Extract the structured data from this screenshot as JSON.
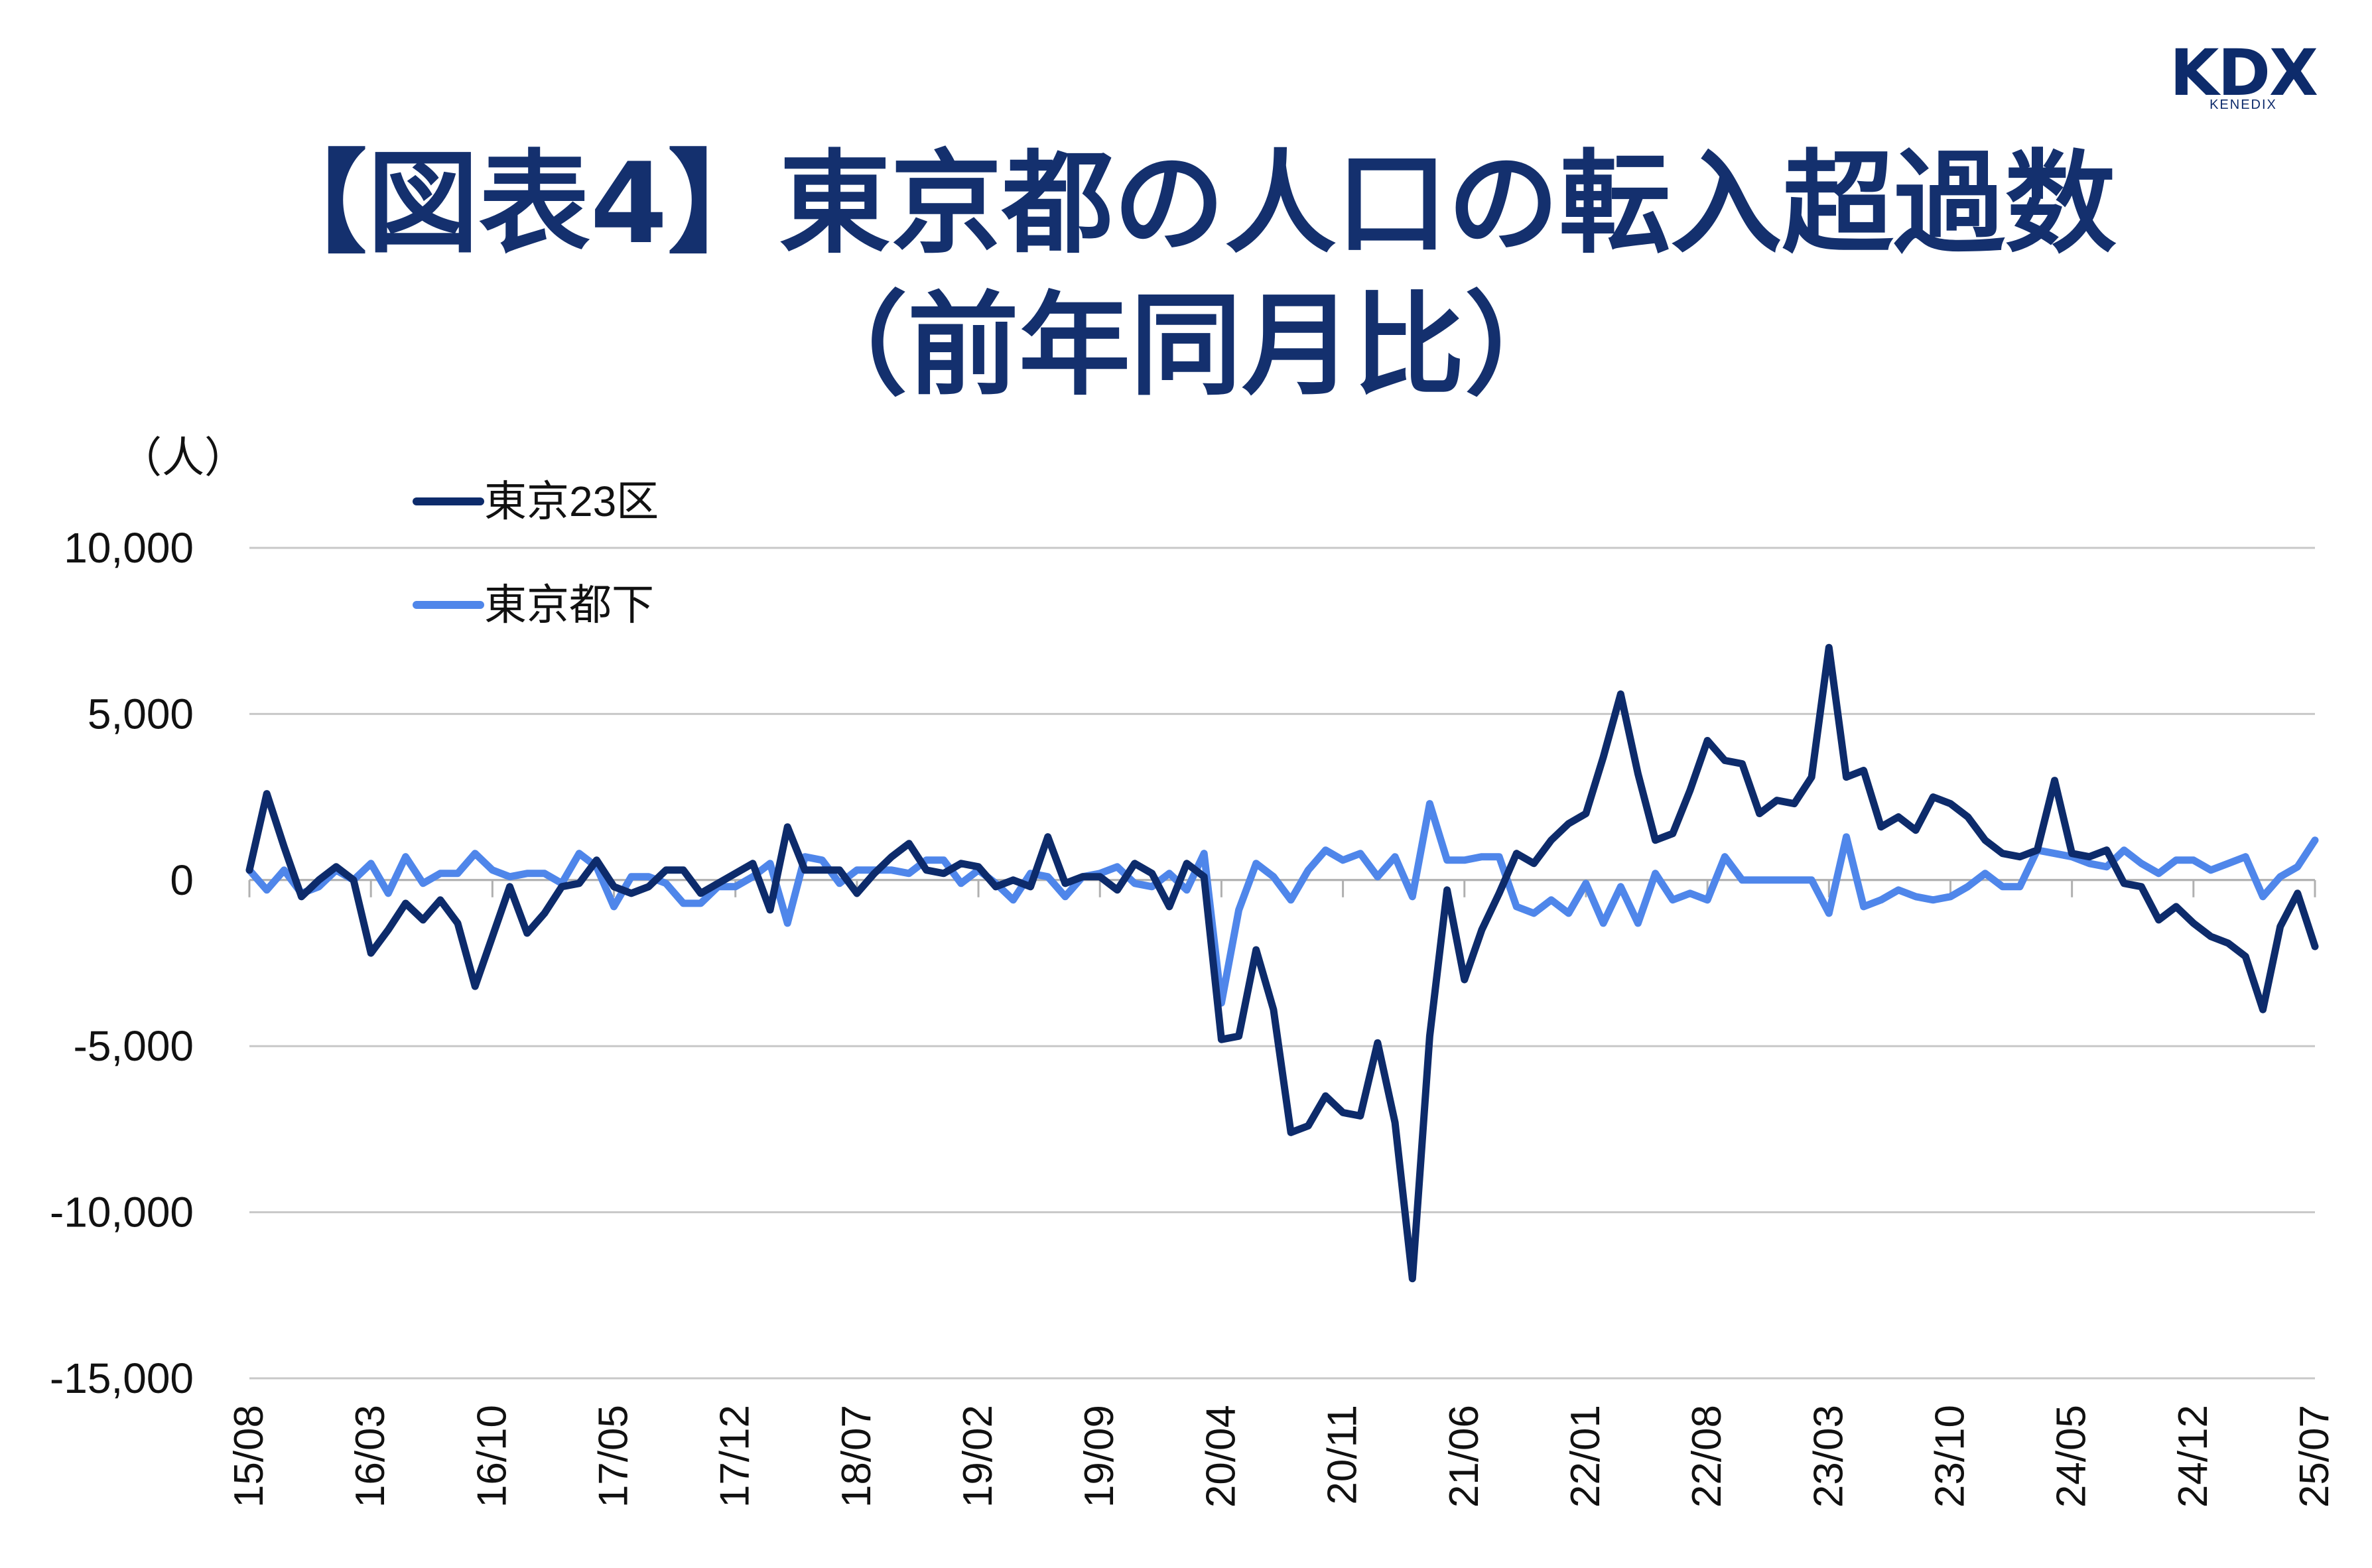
{
  "logo": {
    "main": "KDX",
    "sub": "KENEDIX"
  },
  "title": {
    "line1": "【図表4】東京都の人口の転入超過数",
    "line2": "（前年同月比）"
  },
  "chart_data": {
    "type": "line",
    "unit_label": "（人）",
    "ylim": [
      -15000,
      10000
    ],
    "yticks": [
      10000,
      5000,
      0,
      -5000,
      -10000,
      -15000
    ],
    "ytick_labels": [
      "10,000",
      "5,000",
      "0",
      "-5,000",
      "-10,000",
      "-15,000"
    ],
    "xtick_labels": [
      "15/08",
      "16/03",
      "16/10",
      "17/05",
      "17/12",
      "18/07",
      "19/02",
      "19/09",
      "20/04",
      "20/11",
      "21/06",
      "22/01",
      "22/08",
      "23/03",
      "23/10",
      "24/05",
      "24/12",
      "25/07"
    ],
    "xtick_interval_months": 7,
    "start_month": "15/08",
    "grid": true,
    "legend_position": "top-left",
    "colors": {
      "s1": "#0d2b6b",
      "s2": "#4f86ea"
    },
    "series": [
      {
        "name": "東京23区",
        "color": "#0d2b6b",
        "values": [
          300,
          2600,
          1000,
          -500,
          0,
          400,
          0,
          -2200,
          -1500,
          -700,
          -1200,
          -600,
          -1300,
          -3200,
          -1700,
          -200,
          -1600,
          -1000,
          -200,
          -100,
          600,
          -200,
          -400,
          -200,
          300,
          300,
          -400,
          -100,
          200,
          500,
          -900,
          1600,
          300,
          300,
          300,
          -400,
          200,
          700,
          1100,
          300,
          200,
          500,
          400,
          -200,
          0,
          -200,
          1300,
          -100,
          100,
          100,
          -300,
          500,
          200,
          -800,
          500,
          100,
          -4800,
          -4700,
          -2100,
          -3900,
          -7600,
          -7400,
          -6500,
          -7000,
          -7100,
          -4900,
          -7300,
          -12000,
          -4700,
          -300,
          -3000,
          -1500,
          -400,
          800,
          500,
          1200,
          1700,
          2000,
          3700,
          5600,
          3200,
          1200,
          1400,
          2700,
          4200,
          3600,
          3500,
          2000,
          2400,
          2300,
          3100,
          7000,
          3100,
          3300,
          1600,
          1900,
          1500,
          2500,
          2300,
          1900,
          1200,
          800,
          700,
          900,
          3000,
          800,
          700,
          900,
          -100,
          -200,
          -1200,
          -800,
          -1300,
          -1700,
          -1900,
          -2300,
          -3900,
          -1400,
          -400,
          -2000
        ]
      },
      {
        "name": "東京都下",
        "color": "#4f86ea",
        "values": [
          300,
          -300,
          300,
          -400,
          -200,
          300,
          0,
          500,
          -400,
          700,
          -100,
          200,
          200,
          800,
          300,
          100,
          200,
          200,
          -100,
          800,
          400,
          -800,
          100,
          100,
          -100,
          -700,
          -700,
          -200,
          -200,
          100,
          500,
          -1300,
          700,
          600,
          -100,
          300,
          300,
          300,
          200,
          600,
          600,
          -100,
          300,
          -100,
          -600,
          200,
          100,
          -500,
          100,
          200,
          400,
          -100,
          -200,
          200,
          -300,
          800,
          -3700,
          -900,
          500,
          100,
          -600,
          300,
          900,
          600,
          800,
          100,
          700,
          -500,
          2300,
          600,
          600,
          700,
          700,
          -800,
          -1000,
          -600,
          -1000,
          -100,
          -1300,
          -200,
          -1300,
          200,
          -600,
          -400,
          -600,
          700,
          0,
          0,
          0,
          0,
          0,
          -1000,
          1300,
          -800,
          -600,
          -300,
          -500,
          -600,
          -500,
          -200,
          200,
          -200,
          -200,
          900,
          800,
          700,
          500,
          400,
          900,
          500,
          200,
          600,
          600,
          300,
          500,
          700,
          -500,
          100,
          400,
          1200
        ]
      }
    ]
  }
}
